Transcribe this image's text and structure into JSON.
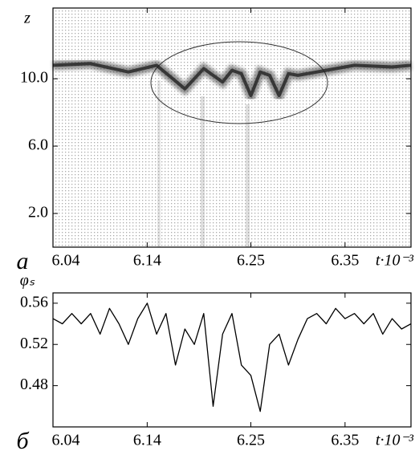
{
  "chart_data": [
    {
      "type": "density",
      "panel_label": "a",
      "ylabel": "z",
      "xlabel": "t·10⁻³",
      "x": [
        6.04,
        6.08,
        6.12,
        6.15,
        6.18,
        6.2,
        6.21,
        6.22,
        6.23,
        6.24,
        6.25,
        6.26,
        6.27,
        6.28,
        6.29,
        6.3,
        6.33,
        6.36,
        6.4,
        6.42
      ],
      "values": [
        10.8,
        10.9,
        10.4,
        10.8,
        9.4,
        10.6,
        10.2,
        9.8,
        10.5,
        10.3,
        9.0,
        10.4,
        10.2,
        9.0,
        10.3,
        10.2,
        10.5,
        10.8,
        10.7,
        10.8
      ],
      "color": "#222222",
      "xlim": [
        6.04,
        6.42
      ],
      "ylim": [
        0,
        14.2
      ],
      "xticks": [
        6.04,
        6.14,
        6.25,
        6.35
      ],
      "yticks": [
        {
          "value": 2,
          "label": "2.0"
        },
        {
          "value": 6,
          "label": "6.0"
        },
        {
          "value": 10,
          "label": "10.0"
        }
      ]
    },
    {
      "type": "line",
      "panel_label": "б",
      "ylabel": "φₛ",
      "xlabel": "t·10⁻³",
      "x": [
        6.04,
        6.05,
        6.06,
        6.07,
        6.08,
        6.09,
        6.1,
        6.11,
        6.12,
        6.13,
        6.14,
        6.15,
        6.16,
        6.17,
        6.18,
        6.19,
        6.2,
        6.21,
        6.22,
        6.23,
        6.24,
        6.25,
        6.26,
        6.27,
        6.28,
        6.29,
        6.3,
        6.31,
        6.32,
        6.33,
        6.34,
        6.35,
        6.36,
        6.37,
        6.38,
        6.39,
        6.4,
        6.41,
        6.42
      ],
      "values": [
        0.545,
        0.54,
        0.55,
        0.54,
        0.55,
        0.53,
        0.555,
        0.54,
        0.52,
        0.545,
        0.56,
        0.53,
        0.55,
        0.5,
        0.535,
        0.52,
        0.55,
        0.46,
        0.53,
        0.55,
        0.5,
        0.49,
        0.455,
        0.52,
        0.53,
        0.5,
        0.525,
        0.545,
        0.55,
        0.54,
        0.555,
        0.545,
        0.55,
        0.54,
        0.55,
        0.53,
        0.545,
        0.535,
        0.54
      ],
      "color": "#000000",
      "xlim": [
        6.04,
        6.42
      ],
      "ylim": [
        0.44,
        0.57
      ],
      "xticks": [
        6.04,
        6.14,
        6.25,
        6.35
      ],
      "yticks": [
        0.48,
        0.52,
        0.56
      ]
    }
  ]
}
